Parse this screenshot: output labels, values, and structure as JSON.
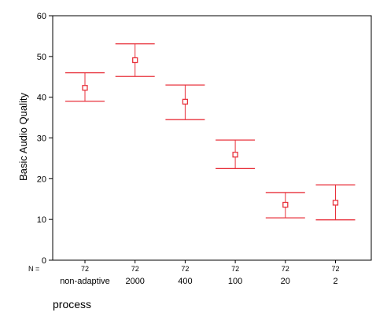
{
  "chart_data": {
    "type": "errorbar",
    "ylabel": "Basic Audio Quality",
    "xlabel": "process",
    "n_label": "N =",
    "ylim": [
      0,
      60
    ],
    "yticks": [
      "0",
      "10",
      "20",
      "30",
      "40",
      "50",
      "60"
    ],
    "categories": [
      "non-adaptive",
      "2000",
      "400",
      "100",
      "20",
      "2"
    ],
    "n_values": [
      "72",
      "72",
      "72",
      "72",
      "72",
      "72"
    ],
    "series": [
      {
        "mean": [
          42.3,
          49.1,
          38.9,
          25.9,
          13.6,
          14.1
        ],
        "lower": [
          39.0,
          45.1,
          34.5,
          22.5,
          10.4,
          9.9
        ],
        "upper": [
          46.0,
          53.1,
          43.0,
          29.5,
          16.6,
          18.5
        ]
      }
    ],
    "marker_color": "#e8323c",
    "grid": false
  }
}
